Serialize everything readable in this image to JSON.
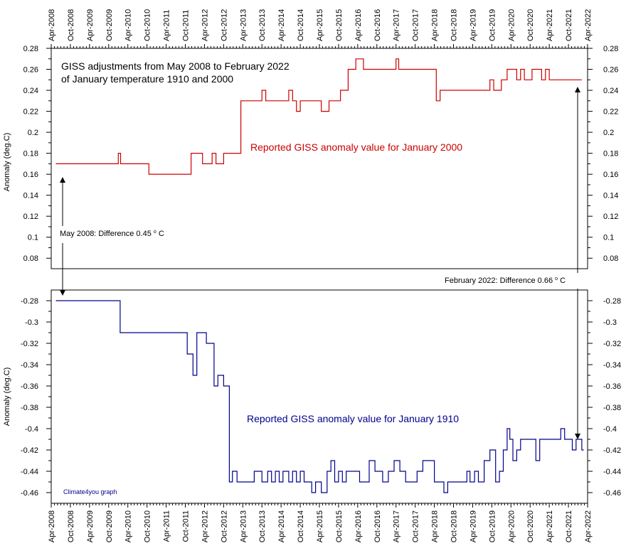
{
  "chart_data": {
    "type": "line",
    "title_lines": [
      "GISS adjustments from May 2008 to February 2022",
      "of January temperature 1910 and 2000"
    ],
    "x_ticks": [
      "Apr-2008",
      "Oct-2008",
      "Apr-2009",
      "Oct-2009",
      "Apr-2010",
      "Oct-2010",
      "Apr-2011",
      "Oct-2011",
      "Apr-2012",
      "Oct-2012",
      "Apr-2013",
      "Oct-2013",
      "Apr-2014",
      "Oct-2014",
      "Apr-2015",
      "Oct-2015",
      "Apr-2016",
      "Oct-2016",
      "Apr-2017",
      "Oct-2017",
      "Apr-2018",
      "Oct-2018",
      "Apr-2019",
      "Oct-2019",
      "Apr-2020",
      "Oct-2020",
      "Apr-2021",
      "Oct-2021",
      "Apr-2022"
    ],
    "x_range_years": [
      2008.25,
      2022.25
    ],
    "upper_panel": {
      "ylabel": "Anomaly (deg.C)",
      "ylim": [
        0.07,
        0.28
      ],
      "y_ticks": [
        0.08,
        0.1,
        0.12,
        0.14,
        0.16,
        0.18,
        0.2,
        0.22,
        0.24,
        0.26,
        0.28
      ],
      "y_tick_labels": [
        "0.08",
        "0.1",
        "0.12",
        "0.14",
        "0.16",
        "0.18",
        "0.2",
        "0.22",
        "0.24",
        "0.26",
        "0.28"
      ]
    },
    "lower_panel": {
      "ylabel": "Anomaly (deg.C)",
      "ylim": [
        -0.47,
        -0.27
      ],
      "y_ticks": [
        -0.28,
        -0.3,
        -0.32,
        -0.34,
        -0.36,
        -0.38,
        -0.4,
        -0.42,
        -0.44,
        -0.46
      ],
      "y_tick_labels": [
        "-0.28",
        "-0.3",
        "-0.32",
        "-0.34",
        "-0.36",
        "-0.38",
        "-0.4",
        "-0.42",
        "-0.44",
        "-0.46"
      ]
    },
    "series": [
      {
        "name": "Reported GISS anomaly value for January 2000",
        "panel": "upper",
        "color": "#cc0000",
        "steps": [
          [
            2008.37,
            0.17
          ],
          [
            2010.0,
            0.18
          ],
          [
            2010.06,
            0.17
          ],
          [
            2010.8,
            0.16
          ],
          [
            2011.9,
            0.18
          ],
          [
            2012.2,
            0.17
          ],
          [
            2012.45,
            0.18
          ],
          [
            2012.55,
            0.17
          ],
          [
            2012.75,
            0.18
          ],
          [
            2013.2,
            0.23
          ],
          [
            2013.75,
            0.24
          ],
          [
            2013.85,
            0.23
          ],
          [
            2014.45,
            0.24
          ],
          [
            2014.55,
            0.23
          ],
          [
            2014.65,
            0.22
          ],
          [
            2014.75,
            0.23
          ],
          [
            2015.3,
            0.22
          ],
          [
            2015.5,
            0.23
          ],
          [
            2015.8,
            0.24
          ],
          [
            2016.0,
            0.26
          ],
          [
            2016.2,
            0.27
          ],
          [
            2016.4,
            0.26
          ],
          [
            2017.25,
            0.27
          ],
          [
            2017.32,
            0.26
          ],
          [
            2018.3,
            0.23
          ],
          [
            2018.4,
            0.24
          ],
          [
            2019.7,
            0.25
          ],
          [
            2019.8,
            0.24
          ],
          [
            2020.0,
            0.25
          ],
          [
            2020.15,
            0.26
          ],
          [
            2020.4,
            0.25
          ],
          [
            2020.5,
            0.26
          ],
          [
            2020.6,
            0.25
          ],
          [
            2020.8,
            0.26
          ],
          [
            2021.05,
            0.25
          ],
          [
            2021.15,
            0.26
          ],
          [
            2021.25,
            0.25
          ],
          [
            2022.1,
            0.25
          ]
        ]
      },
      {
        "name": "Reported GISS anomaly value for January 1910",
        "panel": "lower",
        "color": "#00008b",
        "steps": [
          [
            2008.37,
            -0.28
          ],
          [
            2010.05,
            -0.31
          ],
          [
            2011.8,
            -0.33
          ],
          [
            2011.95,
            -0.35
          ],
          [
            2012.05,
            -0.31
          ],
          [
            2012.3,
            -0.32
          ],
          [
            2012.5,
            -0.36
          ],
          [
            2012.6,
            -0.35
          ],
          [
            2012.75,
            -0.36
          ],
          [
            2012.9,
            -0.45
          ],
          [
            2012.98,
            -0.44
          ],
          [
            2013.1,
            -0.45
          ],
          [
            2013.55,
            -0.44
          ],
          [
            2013.75,
            -0.45
          ],
          [
            2013.9,
            -0.44
          ],
          [
            2014.0,
            -0.45
          ],
          [
            2014.1,
            -0.44
          ],
          [
            2014.2,
            -0.45
          ],
          [
            2014.3,
            -0.44
          ],
          [
            2014.45,
            -0.45
          ],
          [
            2014.55,
            -0.44
          ],
          [
            2014.65,
            -0.45
          ],
          [
            2014.75,
            -0.44
          ],
          [
            2014.85,
            -0.45
          ],
          [
            2015.05,
            -0.46
          ],
          [
            2015.15,
            -0.45
          ],
          [
            2015.3,
            -0.46
          ],
          [
            2015.45,
            -0.44
          ],
          [
            2015.55,
            -0.43
          ],
          [
            2015.65,
            -0.45
          ],
          [
            2015.75,
            -0.44
          ],
          [
            2015.85,
            -0.45
          ],
          [
            2015.95,
            -0.44
          ],
          [
            2016.3,
            -0.45
          ],
          [
            2016.55,
            -0.43
          ],
          [
            2016.7,
            -0.44
          ],
          [
            2016.9,
            -0.45
          ],
          [
            2017.05,
            -0.44
          ],
          [
            2017.2,
            -0.43
          ],
          [
            2017.35,
            -0.44
          ],
          [
            2017.5,
            -0.45
          ],
          [
            2017.8,
            -0.44
          ],
          [
            2017.95,
            -0.43
          ],
          [
            2018.25,
            -0.45
          ],
          [
            2018.5,
            -0.46
          ],
          [
            2018.6,
            -0.45
          ],
          [
            2019.1,
            -0.44
          ],
          [
            2019.18,
            -0.45
          ],
          [
            2019.3,
            -0.44
          ],
          [
            2019.4,
            -0.45
          ],
          [
            2019.55,
            -0.43
          ],
          [
            2019.7,
            -0.42
          ],
          [
            2019.85,
            -0.45
          ],
          [
            2019.95,
            -0.44
          ],
          [
            2020.05,
            -0.42
          ],
          [
            2020.15,
            -0.4
          ],
          [
            2020.22,
            -0.41
          ],
          [
            2020.3,
            -0.43
          ],
          [
            2020.4,
            -0.42
          ],
          [
            2020.5,
            -0.41
          ],
          [
            2020.9,
            -0.43
          ],
          [
            2021.0,
            -0.41
          ],
          [
            2021.55,
            -0.4
          ],
          [
            2021.65,
            -0.41
          ],
          [
            2021.85,
            -0.42
          ],
          [
            2021.95,
            -0.41
          ],
          [
            2022.0,
            -0.41
          ],
          [
            2022.1,
            -0.42
          ],
          [
            2022.15,
            -0.42
          ]
        ]
      }
    ],
    "annotations": {
      "left_difference": "May 2008: Difference 0.45",
      "right_difference": "February 2022: Difference 0.66",
      "unit_superscript": "o",
      "unit_letter": "C",
      "credit": "Climate4you graph"
    }
  }
}
